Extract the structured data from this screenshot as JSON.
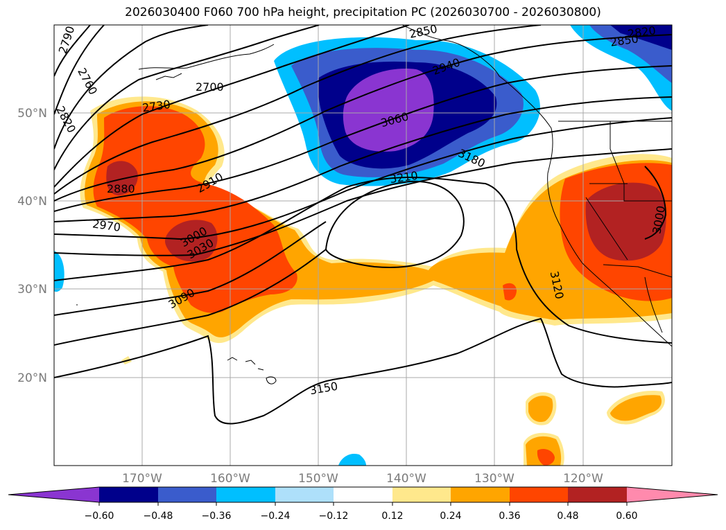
{
  "title": "2026030400 F060 700 hPa height, precipitation PC (2026030700 - 2026030800)",
  "map": {
    "lat_labels": [
      "50°N",
      "40°N",
      "30°N",
      "20°N"
    ],
    "lon_labels": [
      "170°W",
      "160°W",
      "150°W",
      "140°W",
      "130°W",
      "120°W"
    ]
  },
  "contour_labels": [
    "2790",
    "2760",
    "2820",
    "2730",
    "2700",
    "2850",
    "2940",
    "2880",
    "2910",
    "2970",
    "3000",
    "3030",
    "3060",
    "3090",
    "3120",
    "3150",
    "3180",
    "3210",
    "3000",
    "2850",
    "2820"
  ],
  "colorbar": {
    "ticks": [
      "−0.60",
      "−0.48",
      "−0.36",
      "−0.24",
      "−0.12",
      "0.12",
      "0.24",
      "0.36",
      "0.48",
      "0.60"
    ],
    "colors": [
      "#8a35d1",
      "#00008b",
      "#3a5ccc",
      "#00bfff",
      "#aee0fa",
      "#ffffff",
      "#ffe88c",
      "#ffa500",
      "#ff4500",
      "#b22222",
      "#ff8aad"
    ]
  }
}
